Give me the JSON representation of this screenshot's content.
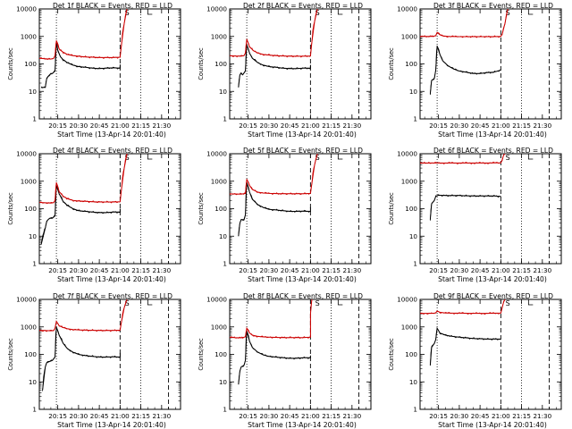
{
  "figure": {
    "background": "#ffffff",
    "event_color": "#000000",
    "lld_color": "#cc0000"
  },
  "chart_data": [
    {
      "type": "line",
      "scale": "log",
      "ylim": [
        1,
        10000
      ],
      "title": "Det 1f BLACK = Events, RED = LLD",
      "xlabel": "Start Time (13-Apr-14 20:01:40)",
      "ylabel": "Counts/sec",
      "x_ticks": [
        "20:15",
        "20:30",
        "20:45",
        "21:00",
        "21:15",
        "21:30"
      ],
      "y_ticks": [
        "1",
        "10",
        "100",
        "1000",
        "10000"
      ],
      "series": [
        {
          "name": "Events",
          "color": "#000000",
          "x": [
            "20:03",
            "20:06",
            "20:07",
            "20:08",
            "20:10",
            "20:11",
            "20:13",
            "20:14",
            "20:15",
            "20:17",
            "20:19",
            "20:22",
            "20:26",
            "20:30",
            "20:35",
            "20:40",
            "20:45",
            "20:50",
            "20:55",
            "21:00",
            "21:00"
          ],
          "values": [
            14,
            14,
            30,
            35,
            45,
            45,
            55,
            600,
            300,
            180,
            140,
            110,
            90,
            80,
            75,
            70,
            68,
            70,
            72,
            70,
            95
          ]
        },
        {
          "name": "LLD",
          "color": "#cc0000",
          "x": [
            "20:01",
            "20:05",
            "20:10",
            "20:12",
            "20:13",
            "20:14",
            "20:16",
            "20:19",
            "20:22",
            "20:26",
            "20:30",
            "20:35",
            "20:40",
            "20:45",
            "20:50",
            "20:55",
            "21:00",
            "21:01",
            "21:03",
            "21:05"
          ],
          "values": [
            160,
            155,
            150,
            160,
            200,
            700,
            350,
            260,
            220,
            200,
            190,
            180,
            175,
            170,
            170,
            170,
            175,
            500,
            3000,
            10000
          ]
        }
      ]
    },
    {
      "type": "line",
      "scale": "log",
      "ylim": [
        1,
        10000
      ],
      "title": "Det 2f BLACK = Events, RED = LLD",
      "xlabel": "Start Time (13-Apr-14 20:01:40)",
      "ylabel": "Counts/sec",
      "x_ticks": [
        "20:15",
        "20:30",
        "20:45",
        "21:00",
        "21:15",
        "21:30"
      ],
      "y_ticks": [
        "1",
        "10",
        "100",
        "1000",
        "10000"
      ],
      "series": [
        {
          "name": "Events",
          "color": "#000000",
          "x": [
            "20:08",
            "20:09",
            "20:10",
            "20:11",
            "20:13",
            "20:14",
            "20:16",
            "20:18",
            "20:22",
            "20:26",
            "20:30",
            "20:35",
            "20:40",
            "20:45",
            "20:50",
            "20:55",
            "21:00",
            "21:00"
          ],
          "values": [
            14,
            40,
            45,
            40,
            55,
            500,
            250,
            160,
            110,
            90,
            80,
            75,
            70,
            68,
            68,
            70,
            70,
            90
          ]
        },
        {
          "name": "LLD",
          "color": "#cc0000",
          "x": [
            "20:01",
            "20:05",
            "20:10",
            "20:12",
            "20:13",
            "20:14",
            "20:16",
            "20:19",
            "20:22",
            "20:26",
            "20:30",
            "20:35",
            "20:40",
            "20:45",
            "20:50",
            "20:55",
            "21:00",
            "21:01",
            "21:03",
            "21:05"
          ],
          "values": [
            200,
            195,
            190,
            200,
            250,
            800,
            420,
            300,
            250,
            220,
            210,
            200,
            195,
            190,
            190,
            190,
            195,
            600,
            3500,
            10000
          ]
        }
      ]
    },
    {
      "type": "line",
      "scale": "log",
      "ylim": [
        1,
        10000
      ],
      "title": "Det 3f BLACK = Events, RED = LLD",
      "xlabel": "Start Time (13-Apr-14 20:01:40)",
      "ylabel": "Counts/sec",
      "x_ticks": [
        "20:15",
        "20:30",
        "20:45",
        "21:00",
        "21:15",
        "21:30"
      ],
      "y_ticks": [
        "1",
        "10",
        "100",
        "1000",
        "10000"
      ],
      "series": [
        {
          "name": "Events",
          "color": "#000000",
          "x": [
            "20:09",
            "20:10",
            "20:12",
            "20:13",
            "20:14",
            "20:16",
            "20:18",
            "20:22",
            "20:26",
            "20:30",
            "20:35",
            "20:40",
            "20:45",
            "20:50",
            "20:55",
            "21:00"
          ],
          "values": [
            8,
            25,
            30,
            60,
            450,
            220,
            130,
            85,
            65,
            55,
            50,
            45,
            45,
            48,
            50,
            60
          ]
        },
        {
          "name": "LLD",
          "color": "#cc0000",
          "x": [
            "20:01",
            "20:05",
            "20:10",
            "20:13",
            "20:14",
            "20:16",
            "20:18",
            "20:22",
            "20:26",
            "20:30",
            "20:35",
            "20:40",
            "20:45",
            "20:50",
            "20:55",
            "21:00",
            "21:01",
            "21:03",
            "21:05"
          ],
          "values": [
            1000,
            1000,
            1000,
            1050,
            1400,
            1150,
            1050,
            1000,
            990,
            980,
            980,
            980,
            980,
            980,
            980,
            1000,
            1200,
            3000,
            10000
          ]
        }
      ]
    },
    {
      "type": "line",
      "scale": "log",
      "ylim": [
        1,
        10000
      ],
      "title": "Det 4f BLACK = Events, RED = LLD",
      "xlabel": "Start Time (13-Apr-14 20:01:40)",
      "ylabel": "Counts/sec",
      "x_ticks": [
        "20:15",
        "20:30",
        "20:45",
        "21:00",
        "21:15",
        "21:30"
      ],
      "y_ticks": [
        "1",
        "10",
        "100",
        "1000",
        "10000"
      ],
      "series": [
        {
          "name": "Events",
          "color": "#000000",
          "x": [
            "20:03",
            "20:06",
            "20:07",
            "20:09",
            "20:11",
            "20:13",
            "20:14",
            "20:16",
            "20:19",
            "20:22",
            "20:26",
            "20:30",
            "20:35",
            "20:40",
            "20:45",
            "20:50",
            "20:55",
            "21:00",
            "21:00"
          ],
          "values": [
            5,
            20,
            35,
            45,
            45,
            55,
            700,
            350,
            180,
            130,
            100,
            85,
            80,
            75,
            72,
            72,
            75,
            75,
            100
          ]
        },
        {
          "name": "LLD",
          "color": "#cc0000",
          "x": [
            "20:01",
            "20:05",
            "20:10",
            "20:12",
            "20:13",
            "20:14",
            "20:16",
            "20:19",
            "20:22",
            "20:26",
            "20:30",
            "20:35",
            "20:40",
            "20:45",
            "20:50",
            "20:55",
            "21:00",
            "21:01",
            "21:03",
            "21:05"
          ],
          "values": [
            170,
            165,
            160,
            165,
            200,
            900,
            420,
            280,
            230,
            200,
            190,
            185,
            180,
            175,
            175,
            175,
            180,
            500,
            3000,
            10000
          ]
        }
      ]
    },
    {
      "type": "line",
      "scale": "log",
      "ylim": [
        1,
        10000
      ],
      "title": "Det 5f BLACK = Events, RED = LLD",
      "xlabel": "Start Time (13-Apr-14 20:01:40)",
      "ylabel": "Counts/sec",
      "x_ticks": [
        "20:15",
        "20:30",
        "20:45",
        "21:00",
        "21:15",
        "21:30"
      ],
      "y_ticks": [
        "1",
        "10",
        "100",
        "1000",
        "10000"
      ],
      "series": [
        {
          "name": "Events",
          "color": "#000000",
          "x": [
            "20:08",
            "20:09",
            "20:10",
            "20:12",
            "20:13",
            "20:14",
            "20:16",
            "20:18",
            "20:22",
            "20:26",
            "20:30",
            "20:35",
            "20:40",
            "20:45",
            "20:50",
            "20:55",
            "21:00",
            "21:00"
          ],
          "values": [
            10,
            30,
            40,
            40,
            60,
            900,
            400,
            220,
            140,
            110,
            95,
            90,
            85,
            80,
            80,
            82,
            80,
            110
          ]
        },
        {
          "name": "LLD",
          "color": "#cc0000",
          "x": [
            "20:01",
            "20:05",
            "20:10",
            "20:13",
            "20:14",
            "20:16",
            "20:18",
            "20:22",
            "20:26",
            "20:30",
            "20:35",
            "20:40",
            "20:45",
            "20:50",
            "20:55",
            "21:00",
            "21:01",
            "21:03",
            "21:05"
          ],
          "values": [
            350,
            345,
            340,
            360,
            1200,
            700,
            500,
            400,
            370,
            360,
            355,
            350,
            350,
            350,
            350,
            360,
            800,
            4000,
            10000
          ]
        }
      ]
    },
    {
      "type": "line",
      "scale": "log",
      "ylim": [
        1,
        10000
      ],
      "title": "Det 6f BLACK = Events, RED = LLD",
      "xlabel": "Start Time (13-Apr-14 20:01:40)",
      "ylabel": "Counts/sec",
      "x_ticks": [
        "20:15",
        "20:30",
        "20:45",
        "21:00",
        "21:15",
        "21:30"
      ],
      "y_ticks": [
        "1",
        "10",
        "100",
        "1000",
        "10000"
      ],
      "series": [
        {
          "name": "Events",
          "color": "#000000",
          "x": [
            "20:09",
            "20:10",
            "20:12",
            "20:13",
            "20:15",
            "20:20",
            "20:25",
            "20:30",
            "20:35",
            "20:40",
            "20:45",
            "20:50",
            "20:55",
            "21:00"
          ],
          "values": [
            40,
            150,
            200,
            280,
            310,
            300,
            300,
            300,
            295,
            290,
            290,
            290,
            290,
            280
          ]
        },
        {
          "name": "LLD",
          "color": "#cc0000",
          "x": [
            "20:01",
            "20:10",
            "20:20",
            "20:30",
            "20:40",
            "20:50",
            "21:00",
            "21:01",
            "21:02",
            "21:03"
          ],
          "values": [
            4600,
            4600,
            4600,
            4600,
            4600,
            4600,
            4700,
            6000,
            9000,
            10000
          ]
        }
      ]
    },
    {
      "type": "line",
      "scale": "log",
      "ylim": [
        1,
        10000
      ],
      "title": "Det 7f BLACK = Events, RED = LLD",
      "xlabel": "Start Time (13-Apr-14 20:01:40)",
      "ylabel": "Counts/sec",
      "x_ticks": [
        "20:15",
        "20:30",
        "20:45",
        "21:00",
        "21:15",
        "21:30"
      ],
      "y_ticks": [
        "1",
        "10",
        "100",
        "1000",
        "10000"
      ],
      "series": [
        {
          "name": "Events",
          "color": "#000000",
          "x": [
            "20:04",
            "20:06",
            "20:07",
            "20:09",
            "20:11",
            "20:13",
            "20:14",
            "20:16",
            "20:19",
            "20:22",
            "20:26",
            "20:30",
            "20:35",
            "20:40",
            "20:45",
            "20:50",
            "20:55",
            "21:00",
            "21:00"
          ],
          "values": [
            5,
            35,
            50,
            55,
            60,
            80,
            1000,
            500,
            250,
            160,
            120,
            100,
            90,
            85,
            80,
            80,
            82,
            80,
            110
          ]
        },
        {
          "name": "LLD",
          "color": "#cc0000",
          "x": [
            "20:01",
            "20:05",
            "20:10",
            "20:12",
            "20:13",
            "20:14",
            "20:16",
            "20:19",
            "20:22",
            "20:26",
            "20:30",
            "20:35",
            "20:40",
            "20:45",
            "20:50",
            "20:55",
            "21:00",
            "21:01",
            "21:03",
            "21:05"
          ],
          "values": [
            750,
            740,
            720,
            740,
            900,
            1600,
            1100,
            950,
            850,
            800,
            780,
            760,
            750,
            740,
            740,
            740,
            760,
            1500,
            5000,
            10000
          ]
        }
      ]
    },
    {
      "type": "line",
      "scale": "log",
      "ylim": [
        1,
        10000
      ],
      "title": "Det 8f BLACK = Events, RED = LLD",
      "xlabel": "Start Time (13-Apr-14 20:01:40)",
      "ylabel": "Counts/sec",
      "x_ticks": [
        "20:15",
        "20:30",
        "20:45",
        "21:00",
        "21:15",
        "21:30"
      ],
      "y_ticks": [
        "1",
        "10",
        "100",
        "1000",
        "10000"
      ],
      "series": [
        {
          "name": "Events",
          "color": "#000000",
          "x": [
            "20:08",
            "20:09",
            "20:10",
            "20:12",
            "20:13",
            "20:14",
            "20:16",
            "20:18",
            "20:22",
            "20:26",
            "20:30",
            "20:35",
            "20:40",
            "20:45",
            "20:50",
            "20:55",
            "21:00",
            "21:00"
          ],
          "values": [
            8,
            25,
            35,
            40,
            60,
            700,
            300,
            180,
            120,
            95,
            85,
            80,
            75,
            72,
            72,
            75,
            75,
            90
          ]
        },
        {
          "name": "LLD",
          "color": "#cc0000",
          "x": [
            "20:01",
            "20:05",
            "20:10",
            "20:13",
            "20:14",
            "20:16",
            "20:18",
            "20:22",
            "20:26",
            "20:30",
            "20:35",
            "20:40",
            "20:45",
            "20:50",
            "20:55",
            "21:00",
            "21:00",
            "21:01"
          ],
          "values": [
            420,
            410,
            400,
            430,
            900,
            600,
            500,
            450,
            430,
            420,
            415,
            410,
            410,
            410,
            410,
            420,
            3000,
            10000
          ]
        }
      ]
    },
    {
      "type": "line",
      "scale": "log",
      "ylim": [
        1,
        10000
      ],
      "title": "Det 9f BLACK = Events, RED = LLD",
      "xlabel": "Start Time (13-Apr-14 20:01:40)",
      "ylabel": "Counts/sec",
      "x_ticks": [
        "20:15",
        "20:30",
        "20:45",
        "21:00",
        "21:15",
        "21:30"
      ],
      "y_ticks": [
        "1",
        "10",
        "100",
        "1000",
        "10000"
      ],
      "series": [
        {
          "name": "Events",
          "color": "#000000",
          "x": [
            "20:09",
            "20:10",
            "20:12",
            "20:13",
            "20:14",
            "20:16",
            "20:20",
            "20:25",
            "20:30",
            "20:35",
            "20:40",
            "20:45",
            "20:50",
            "20:55",
            "21:00"
          ],
          "values": [
            40,
            180,
            250,
            350,
            900,
            600,
            500,
            450,
            420,
            400,
            380,
            370,
            360,
            360,
            360
          ]
        },
        {
          "name": "LLD",
          "color": "#cc0000",
          "x": [
            "20:01",
            "20:05",
            "20:10",
            "20:13",
            "20:14",
            "20:16",
            "20:20",
            "20:30",
            "20:40",
            "20:50",
            "21:00",
            "21:01",
            "21:02",
            "21:03"
          ],
          "values": [
            3100,
            3100,
            3100,
            3200,
            3800,
            3400,
            3200,
            3150,
            3100,
            3100,
            3200,
            5000,
            8000,
            10000
          ]
        }
      ]
    }
  ]
}
